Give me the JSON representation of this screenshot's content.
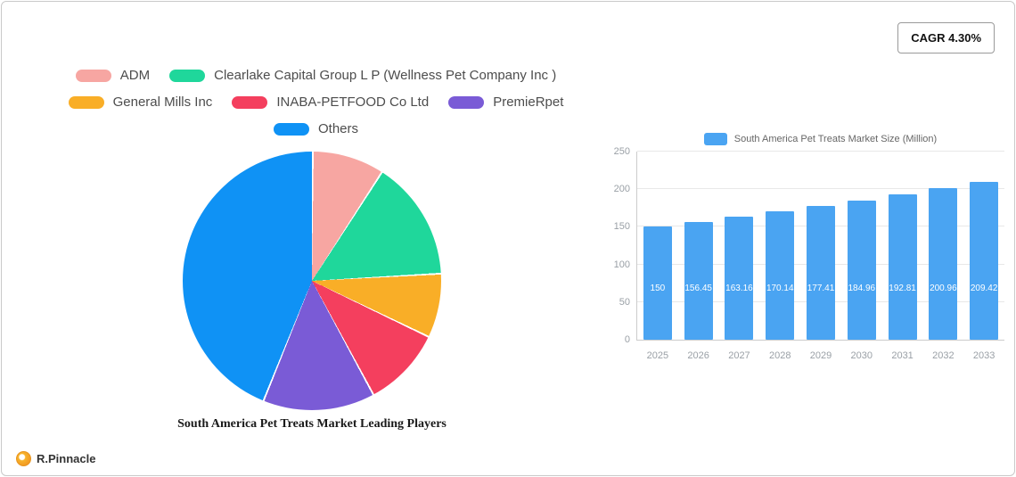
{
  "cagr_badge": "CAGR 4.30%",
  "logo": {
    "text": "R.Pinnacle"
  },
  "chart_data": [
    {
      "type": "pie",
      "title": "South America Pet Treats Market Leading Players",
      "labels": [
        "ADM",
        "Clearlake Capital Group L P  (Wellness Pet Company Inc )",
        "General Mills Inc",
        "INABA-PETFOOD Co  Ltd",
        "PremieRpet",
        "Others"
      ],
      "values": [
        9,
        15,
        8,
        10,
        14,
        44
      ],
      "colors": [
        "#f7a6a2",
        "#1fd79b",
        "#f9ae27",
        "#f43f5e",
        "#7a5bd6",
        "#0f92f5"
      ],
      "legend_position": "top",
      "start_angle_deg": 0,
      "direction": "clockwise"
    },
    {
      "type": "bar",
      "title": "South America Pet Treats Market Size (Million)",
      "legend_label": "South America Pet Treats Market Size (Million)",
      "categories": [
        "2025",
        "2026",
        "2027",
        "2028",
        "2029",
        "2030",
        "2031",
        "2032",
        "2033"
      ],
      "values": [
        150,
        156.45,
        163.16,
        170.14,
        177.41,
        184.96,
        192.81,
        200.96,
        209.42
      ],
      "bar_labels": [
        "150",
        "156.45",
        "163.16",
        "170.14",
        "177.41",
        "184.96",
        "192.81",
        "200.96",
        "209.42"
      ],
      "xlabel": "",
      "ylabel": "",
      "ylim": [
        0,
        250
      ],
      "yticks": [
        0,
        50,
        100,
        150,
        200,
        250
      ],
      "bar_color": "#4aa4f2",
      "grid": true,
      "legend_position": "top"
    }
  ]
}
